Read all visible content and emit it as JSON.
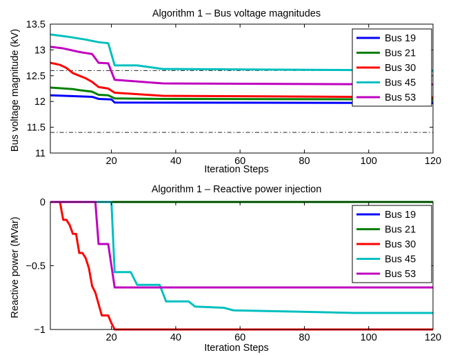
{
  "chart_data": [
    {
      "type": "line",
      "title": "Algorithm 1 – Bus voltage magnitudes",
      "xlabel": "Iteration Steps",
      "ylabel": "Bus voltage magnitude (kV)",
      "xlim": [
        1,
        120
      ],
      "ylim": [
        11,
        13.5
      ],
      "xticks": [
        20,
        40,
        60,
        80,
        100,
        120
      ],
      "yticks": [
        11,
        11.5,
        12,
        12.5,
        13,
        13.5
      ],
      "legend_position": "top-right",
      "reference_lines": [
        12.6,
        11.4
      ],
      "series": [
        {
          "name": "Bus 19",
          "color": "#0000ff",
          "points": [
            [
              1,
              12.12
            ],
            [
              14,
              12.09
            ],
            [
              16,
              12.05
            ],
            [
              20,
              12.04
            ],
            [
              21,
              11.98
            ],
            [
              120,
              11.97
            ]
          ]
        },
        {
          "name": "Bus 21",
          "color": "#008000",
          "points": [
            [
              1,
              12.27
            ],
            [
              8,
              12.24
            ],
            [
              10,
              12.22
            ],
            [
              14,
              12.19
            ],
            [
              16,
              12.13
            ],
            [
              19,
              12.12
            ],
            [
              21,
              12.06
            ],
            [
              36,
              12.05
            ],
            [
              120,
              12.04
            ]
          ]
        },
        {
          "name": "Bus 30",
          "color": "#ff0000",
          "points": [
            [
              1,
              12.75
            ],
            [
              4,
              12.71
            ],
            [
              6,
              12.65
            ],
            [
              8,
              12.55
            ],
            [
              10,
              12.5
            ],
            [
              12,
              12.45
            ],
            [
              14,
              12.38
            ],
            [
              16,
              12.28
            ],
            [
              19,
              12.25
            ],
            [
              21,
              12.17
            ],
            [
              36,
              12.11
            ],
            [
              120,
              12.08
            ]
          ]
        },
        {
          "name": "Bus 45",
          "color": "#00bfbf",
          "points": [
            [
              1,
              13.3
            ],
            [
              6,
              13.26
            ],
            [
              12,
              13.2
            ],
            [
              16,
              13.15
            ],
            [
              19,
              13.13
            ],
            [
              21,
              12.7
            ],
            [
              28,
              12.7
            ],
            [
              36,
              12.63
            ],
            [
              120,
              12.6
            ]
          ]
        },
        {
          "name": "Bus 53",
          "color": "#bf00bf",
          "points": [
            [
              1,
              13.06
            ],
            [
              5,
              13.03
            ],
            [
              10,
              12.96
            ],
            [
              14,
              12.92
            ],
            [
              16,
              12.75
            ],
            [
              19,
              12.74
            ],
            [
              21,
              12.42
            ],
            [
              36,
              12.35
            ],
            [
              120,
              12.33
            ]
          ]
        }
      ]
    },
    {
      "type": "line",
      "title": "Algorithm 1 – Reactive power injection",
      "xlabel": "Iteration Steps",
      "ylabel": "Reactive power (MVar)",
      "xlim": [
        1,
        120
      ],
      "ylim": [
        -1,
        0
      ],
      "xticks": [
        20,
        40,
        60,
        80,
        100,
        120
      ],
      "yticks": [
        -1,
        -0.5,
        0
      ],
      "ytick_labels": [
        "−1",
        "−0.5",
        "0"
      ],
      "legend_position": "top-right",
      "series": [
        {
          "name": "Bus 19",
          "color": "#0000ff",
          "points": [
            [
              1,
              0
            ],
            [
              120,
              0
            ]
          ]
        },
        {
          "name": "Bus 21",
          "color": "#008000",
          "points": [
            [
              1,
              0
            ],
            [
              120,
              0
            ]
          ]
        },
        {
          "name": "Bus 30",
          "color": "#ff0000",
          "points": [
            [
              1,
              0
            ],
            [
              4,
              0
            ],
            [
              5,
              -0.14
            ],
            [
              6,
              -0.14
            ],
            [
              7,
              -0.18
            ],
            [
              8,
              -0.25
            ],
            [
              9,
              -0.25
            ],
            [
              10,
              -0.4
            ],
            [
              11,
              -0.4
            ],
            [
              12,
              -0.44
            ],
            [
              13,
              -0.52
            ],
            [
              14,
              -0.66
            ],
            [
              15,
              -0.71
            ],
            [
              16,
              -0.8
            ],
            [
              17,
              -0.89
            ],
            [
              19,
              -0.89
            ],
            [
              20,
              -0.95
            ],
            [
              21,
              -1
            ],
            [
              120,
              -1
            ]
          ]
        },
        {
          "name": "Bus 45",
          "color": "#00bfbf",
          "points": [
            [
              1,
              0
            ],
            [
              20,
              0
            ],
            [
              21,
              -0.55
            ],
            [
              26,
              -0.55
            ],
            [
              28,
              -0.65
            ],
            [
              35,
              -0.65
            ],
            [
              37,
              -0.78
            ],
            [
              44,
              -0.78
            ],
            [
              46,
              -0.82
            ],
            [
              55,
              -0.83
            ],
            [
              58,
              -0.85
            ],
            [
              78,
              -0.86
            ],
            [
              95,
              -0.87
            ],
            [
              120,
              -0.87
            ]
          ]
        },
        {
          "name": "Bus 53",
          "color": "#bf00bf",
          "points": [
            [
              1,
              0
            ],
            [
              15,
              0
            ],
            [
              16,
              -0.33
            ],
            [
              19,
              -0.33
            ],
            [
              21,
              -0.67
            ],
            [
              120,
              -0.67
            ]
          ]
        }
      ]
    }
  ]
}
